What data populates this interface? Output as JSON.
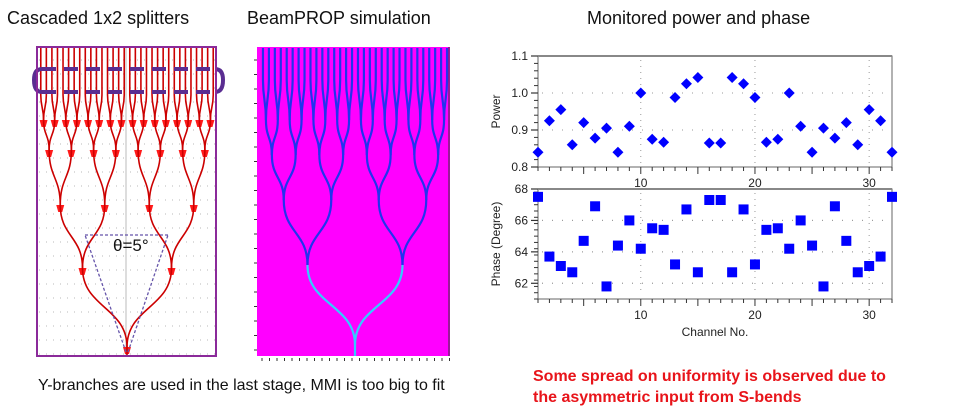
{
  "titles": {
    "splitters": "Cascaded 1x2 splitters",
    "simulation": "BeamPROP simulation",
    "monitor": "Monitored power and phase"
  },
  "diagram": {
    "angle_label": "θ=5°",
    "stages": 5,
    "outputs": 32,
    "colors": {
      "waveguide": "#cc0000",
      "junction": "#ff1a1a",
      "frame": "#8b2a9a",
      "highlight": "#5a2d91",
      "angle_arrow": "#6655aa"
    }
  },
  "simulation": {
    "colors": {
      "background": "#ff00ff",
      "waveguide": "#2233ee",
      "trunk": "#33ccff"
    }
  },
  "captions": {
    "left": "Y-branches are used in the last stage, MMI is too big to fit",
    "right_line1": "Some spread on uniformity is observed due to",
    "right_line2": "the asymmetric input from S-bends"
  },
  "colors": {
    "marker": "#0000ff",
    "note": "#e8141a"
  },
  "chart_data": [
    {
      "type": "scatter",
      "title": "",
      "xlabel": "",
      "ylabel": "Power",
      "xlim": [
        1,
        32
      ],
      "ylim": [
        0.8,
        1.1
      ],
      "yticks": [
        "0.8",
        "0.9",
        "1.0",
        "1.1"
      ],
      "xticks": [
        "10",
        "20",
        "30"
      ],
      "marker": "diamond",
      "grid": true,
      "x": [
        1,
        2,
        3,
        4,
        5,
        6,
        7,
        8,
        9,
        10,
        11,
        12,
        13,
        14,
        15,
        16,
        17,
        18,
        19,
        20,
        21,
        22,
        23,
        24,
        25,
        26,
        27,
        28,
        29,
        30,
        31,
        32
      ],
      "y": [
        0.84,
        0.925,
        0.955,
        0.86,
        0.92,
        0.878,
        0.905,
        0.84,
        0.91,
        1.0,
        0.875,
        0.867,
        0.988,
        1.025,
        1.042,
        0.865,
        0.865,
        1.042,
        1.025,
        0.988,
        0.867,
        0.875,
        1.0,
        0.91,
        0.84,
        0.905,
        0.878,
        0.92,
        0.86,
        0.955,
        0.925,
        0.84
      ]
    },
    {
      "type": "scatter",
      "title": "",
      "xlabel": "Channel No.",
      "ylabel": "Phase (Degree)",
      "xlim": [
        1,
        32
      ],
      "ylim": [
        61,
        68
      ],
      "yticks": [
        "62",
        "64",
        "66",
        "68"
      ],
      "xticks": [
        "10",
        "20",
        "30"
      ],
      "marker": "square",
      "grid": true,
      "x": [
        1,
        2,
        3,
        4,
        5,
        6,
        7,
        8,
        9,
        10,
        11,
        12,
        13,
        14,
        15,
        16,
        17,
        18,
        19,
        20,
        21,
        22,
        23,
        24,
        25,
        26,
        27,
        28,
        29,
        30,
        31,
        32
      ],
      "y": [
        67.5,
        63.7,
        63.1,
        62.7,
        64.7,
        66.9,
        61.8,
        64.4,
        66.0,
        64.2,
        65.5,
        65.4,
        63.2,
        66.7,
        62.7,
        67.3,
        67.3,
        62.7,
        66.7,
        63.2,
        65.4,
        65.5,
        64.2,
        66.0,
        64.4,
        61.8,
        66.9,
        64.7,
        62.7,
        63.1,
        63.7,
        67.5
      ]
    }
  ]
}
